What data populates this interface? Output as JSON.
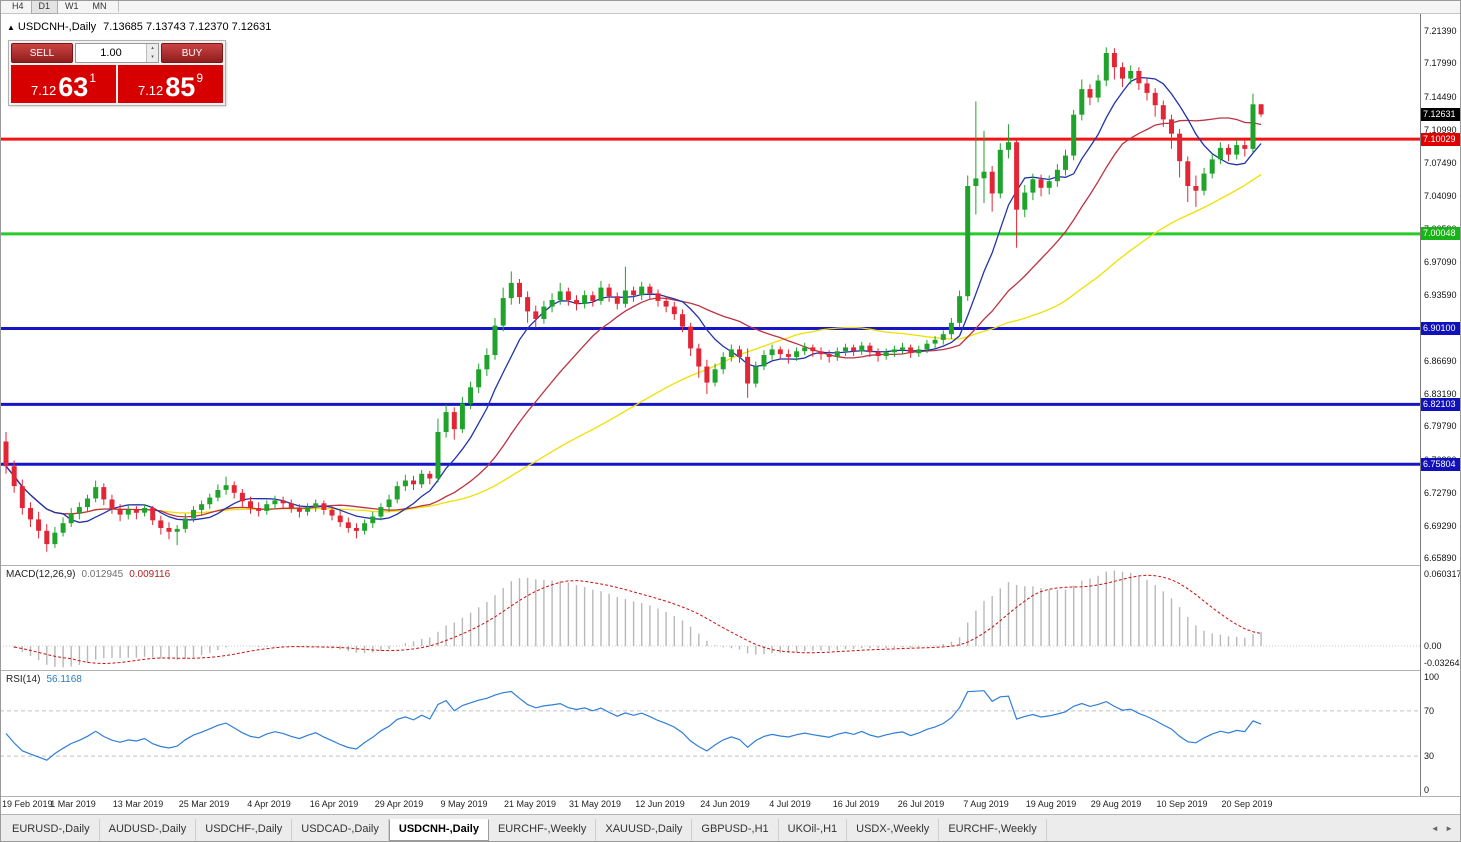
{
  "toolbar": {
    "timeframes": [
      {
        "label": "H4",
        "active": false
      },
      {
        "label": "D1",
        "active": true
      },
      {
        "label": "W1",
        "active": false
      },
      {
        "label": "MN",
        "active": false
      }
    ]
  },
  "symbol_header": {
    "arrow": "▲",
    "symbol": "USDCNH-,Daily",
    "quotes": "7.13685 7.13743 7.12370 7.12631"
  },
  "trade_panel": {
    "sell_label": "SELL",
    "buy_label": "BUY",
    "volume": "1.00",
    "spin_up": "▴",
    "spin_down": "▾",
    "sell_price": {
      "main": "7.12",
      "pips": "63",
      "sup": "1"
    },
    "buy_price": {
      "main": "7.12",
      "pips": "85",
      "sup": "9"
    }
  },
  "price_axis": {
    "ticks": [
      "7.21390",
      "7.17990",
      "7.14490",
      "7.10990",
      "7.07490",
      "7.04090",
      "7.00590",
      "6.97090",
      "6.93590",
      "6.90090",
      "6.86690",
      "6.83190",
      "6.79790",
      "6.76290",
      "6.72790",
      "6.69290",
      "6.65890"
    ],
    "current": {
      "label": "7.12631",
      "value": 7.12631,
      "badge_color": "#000000"
    }
  },
  "levels": [
    {
      "label": "7.10029",
      "value": 7.10029,
      "line_color": "#f01414",
      "badge_color": "#e00000"
    },
    {
      "label": "7.00048",
      "value": 7.00048,
      "line_color": "#28cc28",
      "badge_color": "#17b317"
    },
    {
      "label": "6.90100",
      "value": 6.901,
      "line_color": "#1616c8",
      "badge_color": "#1111bb"
    },
    {
      "label": "6.82103",
      "value": 6.82103,
      "line_color": "#1616c8",
      "badge_color": "#1111bb"
    },
    {
      "label": "6.75804",
      "value": 6.75804,
      "line_color": "#1616c8",
      "badge_color": "#1111bb"
    }
  ],
  "macd_panel": {
    "title": "MACD(12,26,9)",
    "value_main": "0.012945",
    "value_signal": "0.009116",
    "axis_max": "0.060317",
    "axis_zero": "0.00",
    "axis_min": "-0.032648",
    "histogram_color": "#b8b8b8",
    "signal_color": "#cc1111"
  },
  "rsi_panel": {
    "title": "RSI(14)",
    "value": "56.1168",
    "axis_labels": [
      "100",
      "70",
      "30",
      "0"
    ],
    "levels": [
      70,
      30
    ],
    "line_color": "#2f7ed8"
  },
  "tabs": {
    "items": [
      {
        "label": "EURUSD-,Daily",
        "active": false
      },
      {
        "label": "AUDUSD-,Daily",
        "active": false
      },
      {
        "label": "USDCHF-,Daily",
        "active": false
      },
      {
        "label": "USDCAD-,Daily",
        "active": false
      },
      {
        "label": "USDCNH-,Daily",
        "active": true
      },
      {
        "label": "EURCHF-,Weekly",
        "active": false
      },
      {
        "label": "XAUUSD-,Daily",
        "active": false
      },
      {
        "label": "GBPUSD-,H1",
        "active": false
      },
      {
        "label": "UKOil-,H1",
        "active": false
      },
      {
        "label": "USDX-,Weekly",
        "active": false
      },
      {
        "label": "EURCHF-,Weekly",
        "active": false
      }
    ],
    "scroll_left": "◄",
    "scroll_right": "►"
  },
  "chart_data": {
    "type": "candlestick",
    "symbol": "USDCNH",
    "timeframe": "Daily",
    "x_axis": {
      "labels": [
        "19 Feb 2019",
        "1 Mar 2019",
        "13 Mar 2019",
        "25 Mar 2019",
        "4 Apr 2019",
        "16 Apr 2019",
        "29 Apr 2019",
        "9 May 2019",
        "21 May 2019",
        "31 May 2019",
        "12 Jun 2019",
        "24 Jun 2019",
        "4 Jul 2019",
        "16 Jul 2019",
        "26 Jul 2019",
        "7 Aug 2019",
        "19 Aug 2019",
        "29 Aug 2019",
        "10 Sep 2019",
        "20 Sep 2019"
      ],
      "label_step": 8
    },
    "y_axis": {
      "min": 6.652,
      "max": 7.232
    },
    "colors": {
      "up": "#1fa32b",
      "down": "#e32636"
    },
    "moving_averages": [
      {
        "name": "fast",
        "period": 8,
        "color": "#2233aa"
      },
      {
        "name": "medium",
        "period": 20,
        "color": "#bb3344"
      },
      {
        "name": "slow",
        "period": 45,
        "color": "#f0e000"
      }
    ],
    "candles": [
      [
        6.782,
        6.792,
        6.748,
        6.756
      ],
      [
        6.756,
        6.762,
        6.728,
        6.735
      ],
      [
        6.735,
        6.742,
        6.705,
        6.712
      ],
      [
        6.712,
        6.718,
        6.692,
        6.7
      ],
      [
        6.7,
        6.708,
        6.68,
        6.688
      ],
      [
        6.688,
        6.695,
        6.666,
        6.674
      ],
      [
        6.674,
        6.692,
        6.67,
        6.686
      ],
      [
        6.686,
        6.702,
        6.682,
        6.696
      ],
      [
        6.696,
        6.712,
        6.692,
        6.706
      ],
      [
        6.706,
        6.718,
        6.7,
        6.713
      ],
      [
        6.713,
        6.726,
        6.708,
        6.722
      ],
      [
        6.722,
        6.741,
        6.718,
        6.734
      ],
      [
        6.734,
        6.738,
        6.715,
        6.721
      ],
      [
        6.721,
        6.726,
        6.706,
        6.711
      ],
      [
        6.711,
        6.716,
        6.698,
        6.705
      ],
      [
        6.705,
        6.715,
        6.7,
        6.71
      ],
      [
        6.71,
        6.714,
        6.7,
        6.707
      ],
      [
        6.707,
        6.716,
        6.703,
        6.712
      ],
      [
        6.712,
        6.714,
        6.694,
        6.699
      ],
      [
        6.699,
        6.704,
        6.684,
        6.691
      ],
      [
        6.691,
        6.697,
        6.679,
        6.687
      ],
      [
        6.687,
        6.694,
        6.673,
        6.69
      ],
      [
        6.69,
        6.706,
        6.686,
        6.701
      ],
      [
        6.701,
        6.714,
        6.697,
        6.71
      ],
      [
        6.71,
        6.72,
        6.705,
        6.716
      ],
      [
        6.716,
        6.727,
        6.711,
        6.723
      ],
      [
        6.723,
        6.737,
        6.719,
        6.731
      ],
      [
        6.731,
        6.745,
        6.726,
        6.736
      ],
      [
        6.736,
        6.74,
        6.722,
        6.728
      ],
      [
        6.728,
        6.732,
        6.713,
        6.719
      ],
      [
        6.719,
        6.724,
        6.706,
        6.712
      ],
      [
        6.712,
        6.718,
        6.703,
        6.709
      ],
      [
        6.709,
        6.72,
        6.705,
        6.716
      ],
      [
        6.716,
        6.725,
        6.711,
        6.72
      ],
      [
        6.72,
        6.724,
        6.712,
        6.717
      ],
      [
        6.717,
        6.721,
        6.707,
        6.712
      ],
      [
        6.712,
        6.716,
        6.702,
        6.708
      ],
      [
        6.708,
        6.717,
        6.704,
        6.713
      ],
      [
        6.713,
        6.721,
        6.708,
        6.717
      ],
      [
        6.717,
        6.72,
        6.705,
        6.71
      ],
      [
        6.71,
        6.714,
        6.699,
        6.704
      ],
      [
        6.704,
        6.709,
        6.692,
        6.697
      ],
      [
        6.697,
        6.702,
        6.686,
        6.691
      ],
      [
        6.691,
        6.696,
        6.68,
        6.688
      ],
      [
        6.688,
        6.7,
        6.684,
        6.696
      ],
      [
        6.696,
        6.708,
        6.691,
        6.703
      ],
      [
        6.703,
        6.717,
        6.699,
        6.713
      ],
      [
        6.713,
        6.726,
        6.708,
        6.721
      ],
      [
        6.721,
        6.74,
        6.717,
        6.735
      ],
      [
        6.735,
        6.747,
        6.73,
        6.741
      ],
      [
        6.741,
        6.746,
        6.731,
        6.737
      ],
      [
        6.737,
        6.752,
        6.733,
        6.748
      ],
      [
        6.748,
        6.751,
        6.737,
        6.743
      ],
      [
        6.743,
        6.806,
        6.739,
        6.792
      ],
      [
        6.792,
        6.821,
        6.786,
        6.813
      ],
      [
        6.813,
        6.818,
        6.784,
        6.795
      ],
      [
        6.795,
        6.829,
        6.791,
        6.822
      ],
      [
        6.822,
        6.845,
        6.816,
        6.839
      ],
      [
        6.839,
        6.864,
        6.833,
        6.858
      ],
      [
        6.858,
        6.88,
        6.851,
        6.873
      ],
      [
        6.873,
        6.912,
        6.868,
        6.904
      ],
      [
        6.904,
        6.944,
        6.898,
        6.933
      ],
      [
        6.933,
        6.961,
        6.926,
        6.949
      ],
      [
        6.949,
        6.953,
        6.927,
        6.934
      ],
      [
        6.934,
        6.94,
        6.907,
        6.919
      ],
      [
        6.919,
        6.925,
        6.902,
        6.911
      ],
      [
        6.911,
        6.93,
        6.906,
        6.924
      ],
      [
        6.924,
        6.938,
        6.918,
        6.931
      ],
      [
        6.931,
        6.949,
        6.926,
        6.94
      ],
      [
        6.94,
        6.944,
        6.925,
        6.931
      ],
      [
        6.931,
        6.936,
        6.92,
        6.927
      ],
      [
        6.927,
        6.941,
        6.922,
        6.936
      ],
      [
        6.936,
        6.94,
        6.924,
        6.93
      ],
      [
        6.93,
        6.951,
        6.926,
        6.944
      ],
      [
        6.944,
        6.948,
        6.929,
        6.935
      ],
      [
        6.935,
        6.939,
        6.921,
        6.927
      ],
      [
        6.927,
        6.966,
        6.923,
        6.941
      ],
      [
        6.941,
        6.945,
        6.929,
        6.936
      ],
      [
        6.936,
        6.95,
        6.931,
        6.945
      ],
      [
        6.945,
        6.948,
        6.932,
        6.938
      ],
      [
        6.938,
        6.942,
        6.924,
        6.93
      ],
      [
        6.93,
        6.935,
        6.918,
        6.924
      ],
      [
        6.924,
        6.929,
        6.91,
        6.916
      ],
      [
        6.916,
        6.921,
        6.897,
        6.903
      ],
      [
        6.903,
        6.907,
        6.872,
        6.88
      ],
      [
        6.88,
        6.885,
        6.849,
        6.861
      ],
      [
        6.861,
        6.868,
        6.832,
        6.844
      ],
      [
        6.844,
        6.864,
        6.84,
        6.858
      ],
      [
        6.858,
        6.876,
        6.853,
        6.871
      ],
      [
        6.871,
        6.884,
        6.866,
        6.879
      ],
      [
        6.879,
        6.883,
        6.865,
        6.871
      ],
      [
        6.871,
        6.88,
        6.828,
        6.843
      ],
      [
        6.843,
        6.866,
        6.839,
        6.861
      ],
      [
        6.861,
        6.878,
        6.857,
        6.873
      ],
      [
        6.873,
        6.884,
        6.868,
        6.879
      ],
      [
        6.879,
        6.882,
        6.869,
        6.874
      ],
      [
        6.874,
        6.879,
        6.864,
        6.871
      ],
      [
        6.871,
        6.881,
        6.867,
        6.877
      ],
      [
        6.877,
        6.886,
        6.873,
        6.881
      ],
      [
        6.881,
        6.884,
        6.871,
        6.877
      ],
      [
        6.877,
        6.881,
        6.868,
        6.874
      ],
      [
        6.874,
        6.878,
        6.865,
        6.871
      ],
      [
        6.871,
        6.881,
        6.867,
        6.877
      ],
      [
        6.877,
        6.885,
        6.872,
        6.881
      ],
      [
        6.881,
        6.884,
        6.872,
        6.877
      ],
      [
        6.877,
        6.887,
        6.873,
        6.883
      ],
      [
        6.883,
        6.886,
        6.871,
        6.876
      ],
      [
        6.876,
        6.88,
        6.866,
        6.872
      ],
      [
        6.872,
        6.88,
        6.868,
        6.876
      ],
      [
        6.876,
        6.883,
        6.871,
        6.879
      ],
      [
        6.879,
        6.886,
        6.874,
        6.881
      ],
      [
        6.881,
        6.884,
        6.87,
        6.875
      ],
      [
        6.875,
        6.883,
        6.871,
        6.879
      ],
      [
        6.879,
        6.889,
        6.875,
        6.885
      ],
      [
        6.885,
        6.893,
        6.88,
        6.889
      ],
      [
        6.889,
        6.899,
        6.884,
        6.895
      ],
      [
        6.895,
        6.912,
        6.89,
        6.907
      ],
      [
        6.907,
        6.941,
        6.902,
        6.935
      ],
      [
        6.935,
        7.062,
        6.93,
        7.051
      ],
      [
        7.051,
        7.14,
        7.021,
        7.059
      ],
      [
        7.059,
        7.109,
        7.033,
        7.066
      ],
      [
        7.066,
        7.072,
        7.024,
        7.043
      ],
      [
        7.043,
        7.096,
        7.038,
        7.089
      ],
      [
        7.089,
        7.116,
        7.08,
        7.097
      ],
      [
        7.097,
        7.1,
        6.986,
        7.026
      ],
      [
        7.026,
        7.052,
        7.018,
        7.044
      ],
      [
        7.044,
        7.064,
        7.036,
        7.058
      ],
      [
        7.058,
        7.063,
        7.04,
        7.049
      ],
      [
        7.049,
        7.062,
        7.042,
        7.056
      ],
      [
        7.056,
        7.074,
        7.05,
        7.068
      ],
      [
        7.068,
        7.089,
        7.062,
        7.083
      ],
      [
        7.083,
        7.131,
        7.078,
        7.126
      ],
      [
        7.126,
        7.163,
        7.12,
        7.153
      ],
      [
        7.153,
        7.158,
        7.136,
        7.144
      ],
      [
        7.144,
        7.168,
        7.139,
        7.162
      ],
      [
        7.162,
        7.197,
        7.156,
        7.191
      ],
      [
        7.191,
        7.196,
        7.163,
        7.176
      ],
      [
        7.176,
        7.181,
        7.155,
        7.164
      ],
      [
        7.164,
        7.178,
        7.158,
        7.172
      ],
      [
        7.172,
        7.176,
        7.152,
        7.159
      ],
      [
        7.159,
        7.164,
        7.141,
        7.149
      ],
      [
        7.149,
        7.154,
        7.124,
        7.136
      ],
      [
        7.136,
        7.141,
        7.113,
        7.121
      ],
      [
        7.121,
        7.126,
        7.09,
        7.106
      ],
      [
        7.106,
        7.111,
        7.06,
        7.077
      ],
      [
        7.077,
        7.082,
        7.034,
        7.051
      ],
      [
        7.051,
        7.062,
        7.029,
        7.046
      ],
      [
        7.046,
        7.07,
        7.041,
        7.064
      ],
      [
        7.064,
        7.085,
        7.059,
        7.079
      ],
      [
        7.079,
        7.097,
        7.074,
        7.091
      ],
      [
        7.091,
        7.095,
        7.077,
        7.084
      ],
      [
        7.084,
        7.1,
        7.079,
        7.094
      ],
      [
        7.094,
        7.099,
        7.082,
        7.09
      ],
      [
        7.09,
        7.148,
        7.086,
        7.137
      ],
      [
        7.1369,
        7.1374,
        7.1237,
        7.1263
      ]
    ]
  }
}
